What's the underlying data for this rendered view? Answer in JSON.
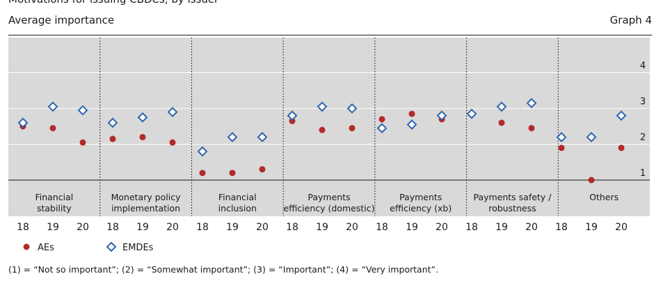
{
  "header": {
    "title_partial": "Motivations for issuing CBDCs, by issuer",
    "left": "Average importance",
    "right": "Graph 4"
  },
  "footnote": "(1) = “Not so important”; (2) = “Somewhat important”; (3) = “Important”; (4) = “Very important”.",
  "colors": {
    "aes": "#b22a2a",
    "emdes": "#2e64ad",
    "plot_bg": "#d9d9d9",
    "divider": "#333333"
  },
  "chart_data": {
    "type": "scatter",
    "ylim": [
      0.8,
      4.8
    ],
    "yticks": [
      1,
      2,
      3,
      4
    ],
    "grid": true,
    "legend_position": "bottom-left",
    "groups": [
      {
        "label_lines": [
          "Financial",
          "stability"
        ],
        "years": [
          "18",
          "19",
          "20"
        ]
      },
      {
        "label_lines": [
          "Monetary policy",
          "implementation"
        ],
        "years": [
          "18",
          "19",
          "20"
        ]
      },
      {
        "label_lines": [
          "Financial",
          "inclusion"
        ],
        "years": [
          "18",
          "19",
          "20"
        ]
      },
      {
        "label_lines": [
          "Payments",
          "efficiency (domestic)"
        ],
        "years": [
          "18",
          "19",
          "20"
        ]
      },
      {
        "label_lines": [
          "Payments",
          "efficiency (xb)"
        ],
        "years": [
          "18",
          "19",
          "20"
        ]
      },
      {
        "label_lines": [
          "Payments safety /",
          "robustness"
        ],
        "years": [
          "18",
          "19",
          "20"
        ]
      },
      {
        "label_lines": [
          "Others"
        ],
        "years": [
          "18",
          "19",
          "20"
        ]
      }
    ],
    "series": [
      {
        "name": "AEs",
        "marker": "circle",
        "values": [
          2.5,
          2.45,
          2.05,
          2.15,
          2.2,
          2.05,
          1.2,
          1.2,
          1.3,
          2.65,
          2.4,
          2.45,
          2.7,
          2.85,
          2.7,
          2.85,
          2.6,
          2.45,
          1.9,
          1.0,
          1.9
        ]
      },
      {
        "name": "EMDEs",
        "marker": "diamond",
        "values": [
          2.6,
          3.05,
          2.95,
          2.6,
          2.75,
          2.9,
          1.8,
          2.2,
          2.2,
          2.8,
          3.05,
          3.0,
          2.45,
          2.55,
          2.8,
          2.85,
          3.05,
          3.15,
          2.2,
          2.2,
          2.8
        ]
      }
    ]
  }
}
